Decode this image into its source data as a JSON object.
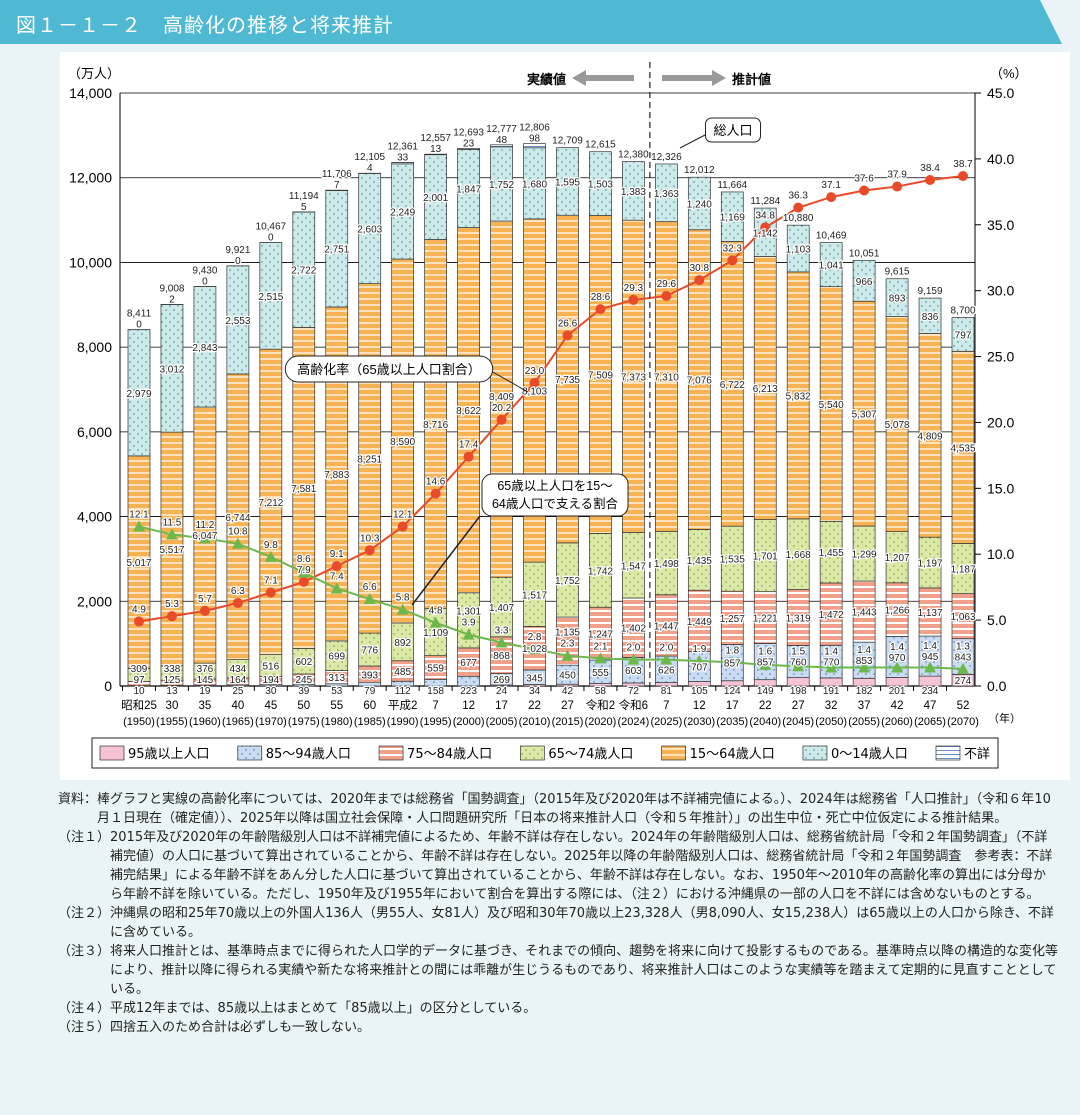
{
  "header": {
    "title": "図１－１－２　高齢化の推移と将来推計"
  },
  "chart_data": {
    "type": "bar",
    "stacked": true,
    "y_left_unit": "（万人）",
    "y_right_unit": "（%）",
    "x_unit": "（年）",
    "ylim": [
      0,
      14000
    ],
    "y_right_lim": [
      0,
      45
    ],
    "y_ticks": [
      "0",
      "2,000",
      "4,000",
      "6,000",
      "8,000",
      "10,000",
      "12,000",
      "14,000"
    ],
    "y_right_ticks": [
      "0.0",
      "5.0",
      "10.0",
      "15.0",
      "20.0",
      "25.0",
      "30.0",
      "35.0",
      "40.0",
      "45.0"
    ],
    "grid": true,
    "legend_position": "bottom",
    "categories_era": [
      "昭和25",
      "30",
      "35",
      "40",
      "45",
      "50",
      "55",
      "60",
      "平成2",
      "7",
      "12",
      "17",
      "22",
      "27",
      "令和2",
      "令和6",
      "7",
      "12",
      "17",
      "22",
      "27",
      "32",
      "37",
      "42",
      "47",
      "52"
    ],
    "categories_year": [
      "(1950)",
      "(1955)",
      "(1960)",
      "(1965)",
      "(1970)",
      "(1975)",
      "(1980)",
      "(1985)",
      "(1990)",
      "(1995)",
      "(2000)",
      "(2005)",
      "(2010)",
      "(2015)",
      "(2020)",
      "(2024)",
      "(2025)",
      "(2030)",
      "(2035)",
      "(2040)",
      "(2045)",
      "(2050)",
      "(2055)",
      "(2060)",
      "(2065)",
      "(2070)"
    ],
    "totals": [
      "8,411",
      "9,008",
      "9,430",
      "9,921",
      "10,467",
      "11,194",
      "11,706",
      "12,105",
      "12,361",
      "12,557",
      "12,693",
      "12,777",
      "12,806",
      "12,709",
      "12,615",
      "12,380",
      "12,326",
      "12,012",
      "11,664",
      "11,284",
      "10,880",
      "10,469",
      "10,051",
      "9,615",
      "9,159",
      "8,700"
    ],
    "series": [
      {
        "name": "95歳以上人口",
        "color": "#f6c3d6",
        "values": [
          null,
          null,
          null,
          null,
          null,
          null,
          null,
          null,
          null,
          null,
          null,
          24,
          34,
          42,
          58,
          72,
          81,
          105,
          124,
          149,
          198,
          191,
          182,
          201,
          234,
          274
        ]
      },
      {
        "name": "85～94歳人口",
        "color": "#c9dcf2",
        "values": [
          10,
          13,
          19,
          25,
          30,
          39,
          53,
          79,
          112,
          158,
          223,
          269,
          345,
          450,
          555,
          603,
          626,
          707,
          857,
          857,
          760,
          770,
          853,
          970,
          945,
          843
        ]
      },
      {
        "name": "75～84歳人口",
        "color": "#f1a08a",
        "values": [
          97,
          125,
          145,
          164,
          194,
          245,
          313,
          393,
          485,
          559,
          677,
          868,
          1028,
          1135,
          1247,
          1402,
          1447,
          1449,
          1257,
          1221,
          1319,
          1472,
          1443,
          1266,
          1137,
          1063
        ]
      },
      {
        "name": "65～74歳人口",
        "color": "#dbe8a8",
        "values": [
          309,
          338,
          376,
          434,
          516,
          602,
          699,
          776,
          892,
          1109,
          1301,
          1407,
          1517,
          1752,
          1742,
          1547,
          1498,
          1435,
          1535,
          1701,
          1668,
          1455,
          1299,
          1207,
          1197,
          1187
        ]
      },
      {
        "name": "15～64歳人口",
        "color": "#f6b253",
        "values": [
          5017,
          5517,
          6047,
          6744,
          7212,
          7581,
          7883,
          8251,
          8590,
          8716,
          8622,
          8409,
          8103,
          7735,
          7509,
          7373,
          7310,
          7076,
          6722,
          6213,
          5832,
          5540,
          5307,
          5078,
          4809,
          4535
        ]
      },
      {
        "name": "0～14歳人口",
        "color": "#cde9ea",
        "values": [
          2979,
          3012,
          2843,
          2553,
          2515,
          2722,
          2751,
          2603,
          2249,
          2001,
          1847,
          1752,
          1680,
          1595,
          1503,
          1383,
          1363,
          1240,
          1169,
          1142,
          1103,
          1041,
          966,
          893,
          836,
          797
        ]
      },
      {
        "name": "不詳",
        "color": "#ffffff",
        "values": [
          0,
          2,
          0,
          0,
          0,
          5,
          7,
          4,
          33,
          13,
          23,
          48,
          98,
          null,
          null,
          null,
          null,
          null,
          null,
          null,
          null,
          null,
          null,
          null,
          null,
          null
        ]
      }
    ],
    "lines": [
      {
        "name": "高齢化率（65歳以上人口割合）",
        "color": "#e84a2a",
        "axis": "right",
        "values": [
          4.9,
          5.3,
          5.7,
          6.3,
          7.1,
          7.9,
          9.1,
          10.3,
          12.1,
          14.6,
          17.4,
          20.2,
          23.0,
          26.6,
          28.6,
          29.3,
          29.6,
          30.8,
          32.3,
          34.8,
          36.3,
          37.1,
          37.6,
          37.9,
          38.4,
          38.7
        ]
      },
      {
        "name": "65歳以上人口を15～64歳人口で支える割合",
        "color": "#6db84b",
        "axis": "right",
        "values": [
          12.1,
          11.5,
          11.2,
          10.8,
          9.8,
          8.6,
          7.4,
          6.6,
          5.8,
          4.8,
          3.9,
          3.3,
          2.8,
          2.3,
          2.1,
          2.0,
          2.0,
          1.9,
          1.8,
          1.6,
          1.5,
          1.4,
          1.4,
          1.4,
          1.4,
          1.3
        ]
      }
    ],
    "annotations": {
      "total": "総人口",
      "actual": "実績値",
      "projected": "推計値"
    }
  },
  "notes": [
    {
      "label": "資料：",
      "text": "棒グラフと実線の高齢化率については、2020年までは総務省「国勢調査」（2015年及び2020年は不詳補完値による。）、2024年は総務省「人口推計」（令和６年10月１日現在（確定値））、2025年以降は国立社会保障・人口問題研究所「日本の将来推計人口（令和５年推計）」の出生中位・死亡中位仮定による推計結果。"
    },
    {
      "label": "（注１）",
      "text": "2015年及び2020年の年齢階級別人口は不詳補完値によるため、年齢不詳は存在しない。2024年の年齢階級別人口は、総務省統計局「令和２年国勢調査」（不詳補完値）の人口に基づいて算出されていることから、年齢不詳は存在しない。2025年以降の年齢階級別人口は、総務省統計局「令和２年国勢調査　参考表：不詳補完結果」による年齢不詳をあん分した人口に基づいて算出されていることから、年齢不詳は存在しない。なお、1950年～2010年の高齢化率の算出には分母から年齢不詳を除いている。ただし、1950年及び1955年において割合を算出する際には、（注２）における沖縄県の一部の人口を不詳には含めないものとする。"
    },
    {
      "label": "（注２）",
      "text": "沖縄県の昭和25年70歳以上の外国人136人（男55人、女81人）及び昭和30年70歳以上23,328人（男8,090人、女15,238人）は65歳以上の人口から除き、不詳に含めている。"
    },
    {
      "label": "（注３）",
      "text": "将来人口推計とは、基準時点までに得られた人口学的データに基づき、それまでの傾向、趨勢を将来に向けて投影するものである。基準時点以降の構造的な変化等により、推計以降に得られる実績や新たな将来推計との間には乖離が生じうるものであり、将来推計人口はこのような実績等を踏まえて定期的に見直すこととしている。"
    },
    {
      "label": "（注４）",
      "text": "平成12年までは、85歳以上はまとめて「85歳以上」の区分としている。"
    },
    {
      "label": "（注５）",
      "text": "四捨五入のため合計は必ずしも一致しない。"
    }
  ]
}
